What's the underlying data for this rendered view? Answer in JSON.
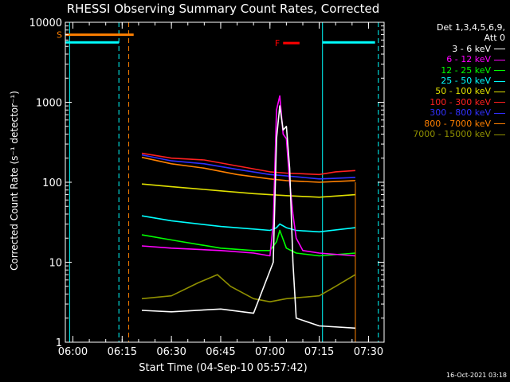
{
  "chart_data": {
    "type": "line",
    "title": "RHESSI Observing Summary Count Rates, Corrected",
    "xlabel": "Start Time (04-Sep-10 05:57:42)",
    "ylabel": "Corrected Count Rate (s⁻¹ detector⁻¹)",
    "ylog": true,
    "ylim": [
      1,
      10000
    ],
    "y_ticks": [
      1,
      10,
      100,
      1000,
      10000
    ],
    "y_tick_labels": [
      "1",
      "10",
      "100",
      "1000",
      "10000"
    ],
    "xlim": [
      "05:57:42",
      "07:34:45"
    ],
    "x_ticks": [
      "06:00",
      "06:15",
      "06:30",
      "06:45",
      "07:00",
      "07:15",
      "07:30"
    ],
    "legend_header": [
      "Det 1,3,4,5,6,9,",
      "Att 0"
    ],
    "legend_placement": "right",
    "timestamp": "16-Oct-2021 03:18",
    "series": [
      {
        "name": "3 - 6 keV",
        "color": "#ffffff",
        "x": [
          "06:21",
          "06:30",
          "06:45",
          "06:55",
          "07:01",
          "07:02",
          "07:03",
          "07:04",
          "07:05",
          "07:06",
          "07:07",
          "07:08",
          "07:15",
          "07:26"
        ],
        "y": [
          2.5,
          2.4,
          2.6,
          2.3,
          10,
          350,
          900,
          450,
          500,
          150,
          10,
          2,
          1.6,
          1.5
        ]
      },
      {
        "name": "6 - 12 keV",
        "color": "#ff00ff",
        "x": [
          "06:21",
          "06:30",
          "06:45",
          "06:55",
          "07:00",
          "07:01",
          "07:02",
          "07:03",
          "07:04",
          "07:05",
          "07:06",
          "07:07",
          "07:08",
          "07:10",
          "07:15",
          "07:26"
        ],
        "y": [
          16,
          15,
          14,
          13,
          12,
          30,
          800,
          1200,
          400,
          350,
          100,
          40,
          20,
          14,
          13,
          12
        ]
      },
      {
        "name": "12 - 25 keV",
        "color": "#00ff00",
        "x": [
          "06:21",
          "06:30",
          "06:45",
          "06:55",
          "07:00",
          "07:02",
          "07:03",
          "07:05",
          "07:08",
          "07:15",
          "07:26"
        ],
        "y": [
          22,
          19,
          15,
          14,
          14,
          18,
          25,
          15,
          13,
          12,
          13
        ]
      },
      {
        "name": "25 - 50 keV",
        "color": "#00ffff",
        "x": [
          "06:21",
          "06:30",
          "06:45",
          "06:55",
          "07:00",
          "07:02",
          "07:03",
          "07:05",
          "07:08",
          "07:15",
          "07:26"
        ],
        "y": [
          38,
          33,
          28,
          26,
          25,
          27,
          30,
          27,
          25,
          24,
          27
        ]
      },
      {
        "name": "50 - 100 keV",
        "color": "#e0e000",
        "x": [
          "06:21",
          "06:30",
          "06:45",
          "06:55",
          "07:00",
          "07:05",
          "07:15",
          "07:26"
        ],
        "y": [
          95,
          88,
          78,
          72,
          70,
          68,
          65,
          70
        ]
      },
      {
        "name": "100 - 300 keV",
        "color": "#ff2020",
        "x": [
          "06:21",
          "06:30",
          "06:40",
          "06:50",
          "07:00",
          "07:05",
          "07:15",
          "07:20",
          "07:26"
        ],
        "y": [
          230,
          200,
          190,
          160,
          135,
          130,
          125,
          135,
          140
        ]
      },
      {
        "name": "300 - 800 keV",
        "color": "#3030ff",
        "x": [
          "06:21",
          "06:30",
          "06:40",
          "06:50",
          "07:00",
          "07:05",
          "07:15",
          "07:20",
          "07:26"
        ],
        "y": [
          220,
          185,
          170,
          145,
          125,
          120,
          110,
          112,
          115
        ]
      },
      {
        "name": "800 - 7000 keV",
        "color": "#ff8000",
        "x": [
          "06:21",
          "06:30",
          "06:40",
          "06:50",
          "07:00",
          "07:05",
          "07:15",
          "07:20",
          "07:26"
        ],
        "y": [
          205,
          170,
          150,
          125,
          110,
          105,
          100,
          102,
          105
        ]
      },
      {
        "name": "7000 - 15000 keV",
        "color": "#909000",
        "x": [
          "06:21",
          "06:30",
          "06:38",
          "06:44",
          "06:48",
          "06:55",
          "07:00",
          "07:05",
          "07:15",
          "07:20",
          "07:26"
        ],
        "y": [
          3.5,
          3.8,
          5.5,
          7,
          5,
          3.5,
          3.2,
          3.5,
          3.8,
          5,
          7
        ]
      }
    ],
    "flags": [
      {
        "label": "S",
        "color": "#ff8000",
        "x_start": "05:57:42",
        "x_end": "06:18:30",
        "y": 7000
      },
      {
        "label": "F",
        "color": "#ff0000",
        "x_start": "07:04",
        "x_end": "07:09",
        "y": 5500
      }
    ],
    "night_lines": {
      "color": "#00ffff",
      "level": 5600,
      "segments": [
        [
          "05:57:42",
          "06:14"
        ],
        [
          "07:16",
          "07:32"
        ]
      ],
      "solid_x": [
        "05:59",
        "07:16"
      ],
      "dashed_x": [
        "06:14",
        "07:33"
      ]
    },
    "saa_lines": {
      "color": "#ff8000",
      "dashed_x": [
        "06:17"
      ],
      "solid_x": [
        "07:26"
      ]
    }
  }
}
